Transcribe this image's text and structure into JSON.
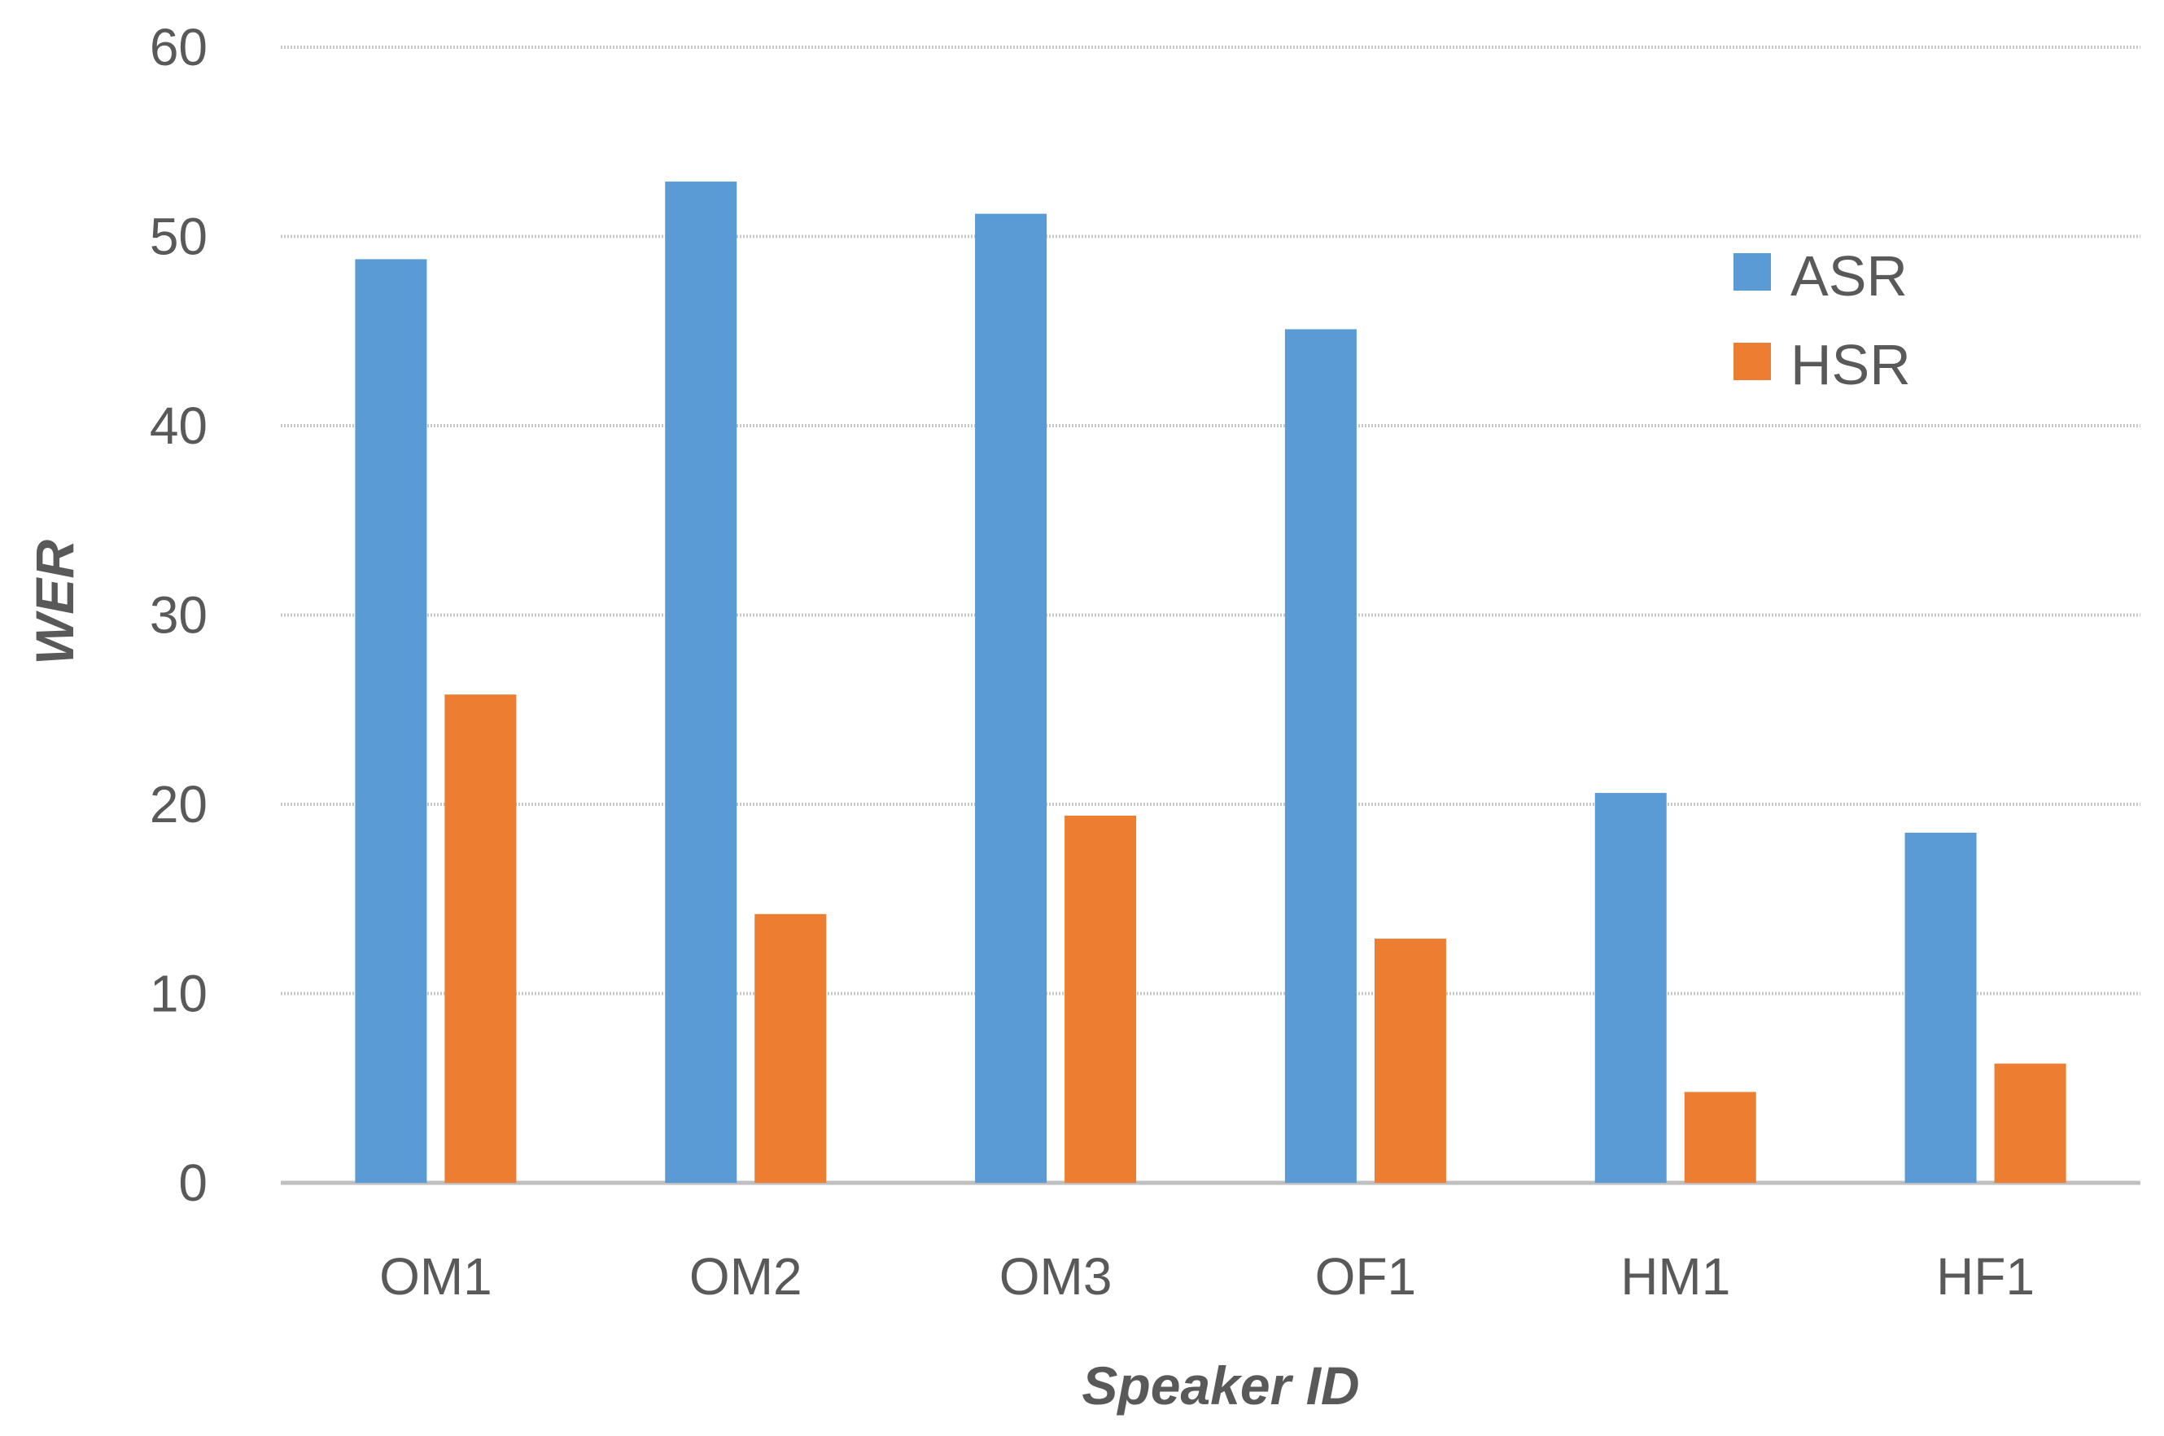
{
  "chart_data": {
    "type": "bar",
    "categories": [
      "OM1",
      "OM2",
      "OM3",
      "OF1",
      "HM1",
      "HF1"
    ],
    "series": [
      {
        "name": "ASR",
        "color": "#5B9BD5",
        "values": [
          48.8,
          52.9,
          51.2,
          45.1,
          20.6,
          18.5
        ]
      },
      {
        "name": "HSR",
        "color": "#ED7D31",
        "values": [
          25.8,
          14.2,
          19.4,
          12.9,
          4.8,
          6.3
        ]
      }
    ],
    "title": "",
    "xlabel": "Speaker ID",
    "ylabel": "WER",
    "ylim": [
      0,
      60
    ],
    "yticks": [
      0,
      10,
      20,
      30,
      40,
      50,
      60
    ],
    "grid": true,
    "legend_position": "top-right"
  }
}
